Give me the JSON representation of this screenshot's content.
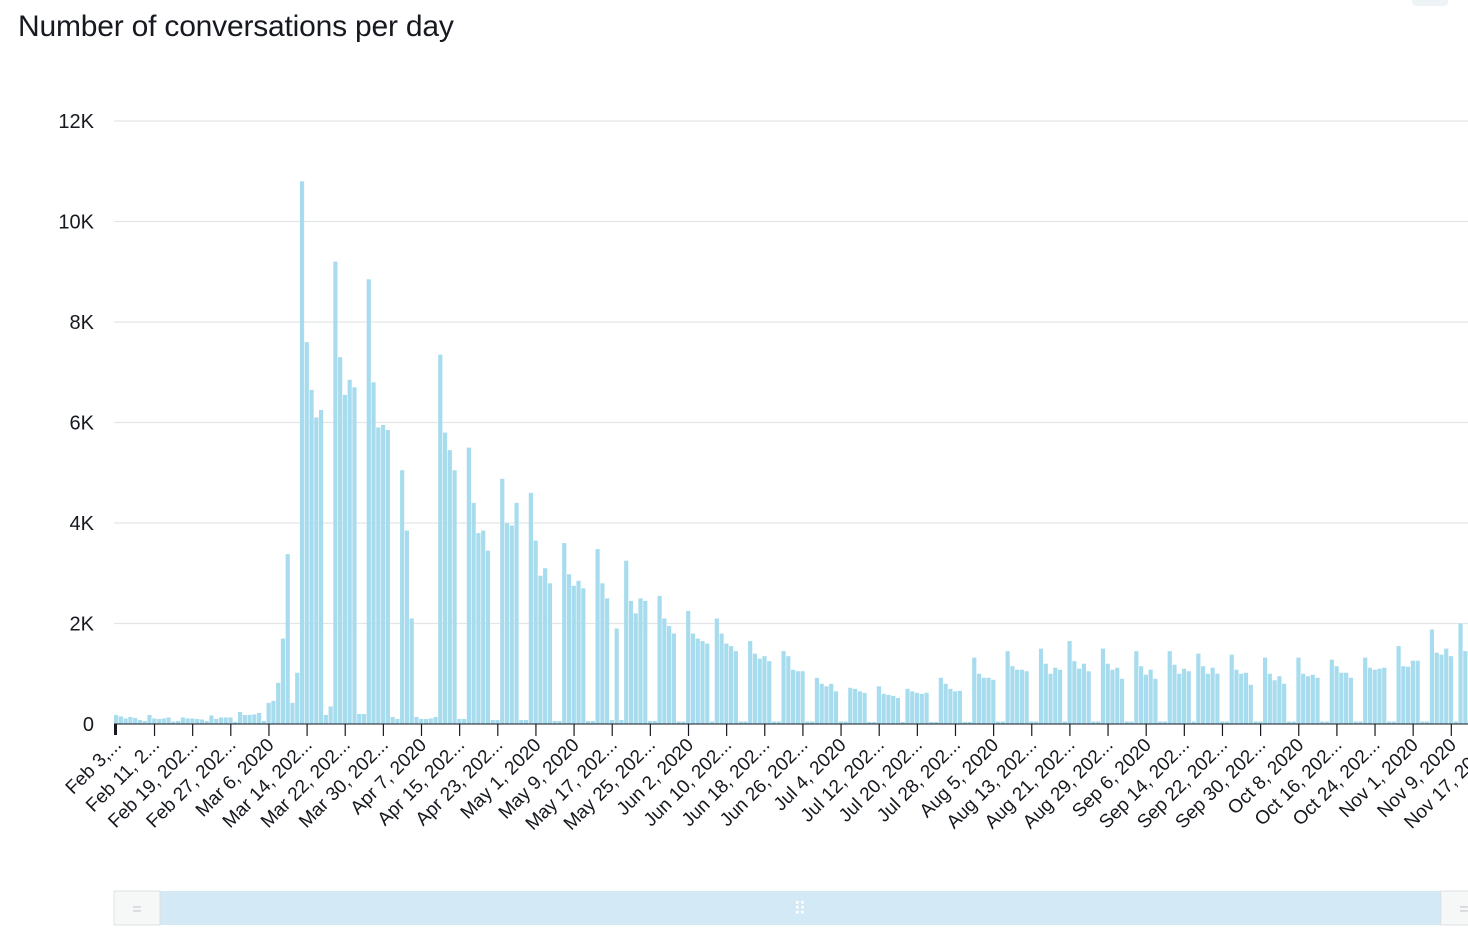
{
  "title": "Number of conversations per day",
  "colors": {
    "bar": "#a6dced",
    "grid": "#e3e6e8",
    "navigator_window": "#d3eaf6",
    "navigator_bg": "#f2f3f3"
  },
  "navigator": {
    "handle_glyph": "=",
    "grip_glyph": "⠿",
    "window_start_fraction": 0.02,
    "window_end_fraction": 0.98
  },
  "chart_data": {
    "type": "bar",
    "title": "Number of conversations per day",
    "xlabel": "",
    "ylabel": "",
    "ylim": [
      0,
      12000
    ],
    "grid": true,
    "legend": "none",
    "y_ticks": [
      {
        "value": 0,
        "label": "0"
      },
      {
        "value": 2000,
        "label": "2K"
      },
      {
        "value": 4000,
        "label": "4K"
      },
      {
        "value": 6000,
        "label": "6K"
      },
      {
        "value": 8000,
        "label": "8K"
      },
      {
        "value": 10000,
        "label": "10K"
      },
      {
        "value": 12000,
        "label": "12K"
      }
    ],
    "x_tick_labels": [
      "Feb 3,...",
      "Feb 11, 2...",
      "Feb 19, 202...",
      "Feb 27, 202...",
      "Mar 6, 2020",
      "Mar 14, 202...",
      "Mar 22, 202...",
      "Mar 30, 202...",
      "Apr 7, 2020",
      "Apr 15, 202...",
      "Apr 23, 202...",
      "May 1, 2020",
      "May 9, 2020",
      "May 17, 202...",
      "May 25, 202...",
      "Jun 2, 2020",
      "Jun 10, 202...",
      "Jun 18, 202...",
      "Jun 26, 202...",
      "Jul 4, 2020",
      "Jul 12, 202...",
      "Jul 20, 202...",
      "Jul 28, 202...",
      "Aug 5, 2020",
      "Aug 13, 202...",
      "Aug 21, 202...",
      "Aug 29, 202...",
      "Sep 6, 2020",
      "Sep 14, 202...",
      "Sep 22, 202...",
      "Sep 30, 202...",
      "Oct 8, 2020",
      "Oct 16, 202...",
      "Oct 24, 202...",
      "Nov 1, 2020",
      "Nov 9, 2020",
      "Nov 17, 202..."
    ],
    "series": [
      {
        "values": [
          180,
          150,
          110,
          140,
          120,
          80,
          60,
          180,
          110,
          100,
          110,
          130,
          50,
          60,
          130,
          110,
          110,
          100,
          90,
          60,
          170,
          100,
          130,
          130,
          130,
          40,
          240,
          180,
          180,
          190,
          220,
          60,
          420,
          460,
          820,
          1700,
          3380,
          420,
          1020,
          10800,
          7600,
          6650,
          6100,
          6250,
          180,
          350,
          9200,
          7300,
          6550,
          6850,
          6700,
          200,
          200,
          8850,
          6800,
          5900,
          5950,
          5850,
          140,
          100,
          5050,
          3850,
          2100,
          140,
          100,
          100,
          110,
          140,
          7350,
          5800,
          5450,
          5050,
          100,
          100,
          5500,
          4400,
          3800,
          3850,
          3450,
          80,
          80,
          4880,
          4000,
          3950,
          4400,
          80,
          80,
          4600,
          3650,
          2950,
          3100,
          2800,
          60,
          60,
          3600,
          2980,
          2750,
          2850,
          2700,
          60,
          60,
          3480,
          2800,
          2500,
          80,
          1900,
          80,
          3250,
          2450,
          2200,
          2500,
          2450,
          60,
          60,
          2550,
          2100,
          1950,
          1800,
          50,
          50,
          2250,
          1800,
          1700,
          1650,
          1600,
          50,
          2100,
          1800,
          1600,
          1550,
          1450,
          50,
          50,
          1650,
          1400,
          1300,
          1350,
          1250,
          50,
          50,
          1450,
          1350,
          1080,
          1050,
          1050,
          50,
          50,
          920,
          800,
          750,
          800,
          650,
          50,
          50,
          720,
          700,
          650,
          620,
          40,
          40,
          750,
          600,
          580,
          560,
          520,
          40,
          700,
          650,
          620,
          600,
          620,
          40,
          40,
          920,
          800,
          700,
          650,
          660,
          40,
          40,
          1320,
          1000,
          920,
          920,
          880,
          50,
          50,
          1450,
          1150,
          1080,
          1080,
          1050,
          50,
          50,
          1500,
          1200,
          1000,
          1120,
          1080,
          50,
          1650,
          1250,
          1100,
          1200,
          1050,
          50,
          50,
          1500,
          1200,
          1080,
          1120,
          900,
          50,
          50,
          1450,
          1150,
          980,
          1080,
          900,
          50,
          50,
          1450,
          1180,
          1000,
          1100,
          1050,
          50,
          1400,
          1150,
          1000,
          1120,
          1000,
          50,
          50,
          1380,
          1080,
          1000,
          1020,
          780,
          50,
          50,
          1320,
          1000,
          870,
          950,
          800,
          50,
          50,
          1320,
          1000,
          950,
          980,
          920,
          50,
          50,
          1280,
          1150,
          1020,
          1020,
          920,
          50,
          50,
          1320,
          1120,
          1080,
          1100,
          1120,
          50,
          50,
          1550,
          1150,
          1140,
          1260,
          1260,
          50,
          50,
          1880,
          1420,
          1380,
          1500,
          1350,
          50,
          2000,
          1450
        ]
      }
    ]
  }
}
